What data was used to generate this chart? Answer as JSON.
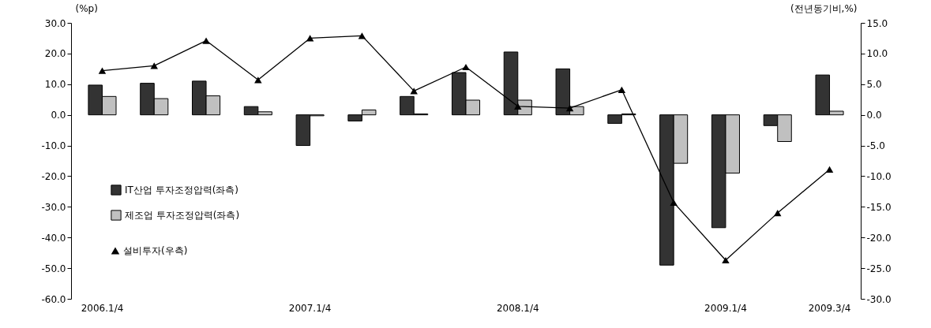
{
  "chart_data": {
    "type": "bar",
    "ylabel": "(%p)",
    "y2label": "(전년동기비,%)",
    "categories": [
      "2006.1/4",
      null,
      null,
      null,
      "2007.1/4",
      null,
      null,
      null,
      "2008.1/4",
      null,
      null,
      null,
      "2009.1/4",
      null,
      "2009.3/4"
    ],
    "series": [
      {
        "name": "IT산업 투자조정압력(좌측)",
        "color": "#333333",
        "values": [
          9.7,
          10.3,
          11.0,
          2.7,
          -10.0,
          -2.0,
          6.0,
          13.8,
          20.5,
          15.0,
          -2.8,
          -49.0,
          -36.8,
          -3.5,
          13.0
        ]
      },
      {
        "name": "제조업 투자조정압력(좌측)",
        "color": "#c0c0c0",
        "values": [
          6.0,
          5.3,
          6.2,
          1.0,
          -0.3,
          1.6,
          0.3,
          4.8,
          4.8,
          2.7,
          0.3,
          -15.8,
          -19.0,
          -8.7,
          1.2
        ]
      },
      {
        "name": "설비투자(우측)",
        "type": "line",
        "axis": "y2",
        "color": "#000000",
        "values": [
          7.2,
          8.0,
          12.1,
          5.7,
          12.5,
          12.9,
          3.9,
          7.8,
          1.4,
          1.1,
          4.1,
          -14.3,
          -23.7,
          -16.0,
          -8.9
        ]
      }
    ],
    "ylim": [
      -60,
      30
    ],
    "yticks": [
      {
        "value": -60,
        "label": "-60.0"
      },
      {
        "value": -50,
        "label": "-50.0"
      },
      {
        "value": -40,
        "label": "-40.0"
      },
      {
        "value": -30,
        "label": "-30.0"
      },
      {
        "value": -20,
        "label": "-20.0"
      },
      {
        "value": -10,
        "label": "-10.0"
      },
      {
        "value": 0,
        "label": "0.0"
      },
      {
        "value": 10,
        "label": "10.0"
      },
      {
        "value": 20,
        "label": "20.0"
      },
      {
        "value": 30,
        "label": "30.0"
      }
    ],
    "y2lim": [
      -30,
      15
    ],
    "y2ticks": [
      {
        "value": -30,
        "label": "-30.0"
      },
      {
        "value": -25,
        "label": "-25.0"
      },
      {
        "value": -20,
        "label": "-20.0"
      },
      {
        "value": -15,
        "label": "-15.0"
      },
      {
        "value": -10,
        "label": "-10.0"
      },
      {
        "value": -5,
        "label": "-5.0"
      },
      {
        "value": 0,
        "label": "0.0"
      },
      {
        "value": 5,
        "label": "5.0"
      },
      {
        "value": 10,
        "label": "10.0"
      },
      {
        "value": 15,
        "label": "15.0"
      }
    ],
    "legend": "left",
    "marker": "triangle"
  }
}
